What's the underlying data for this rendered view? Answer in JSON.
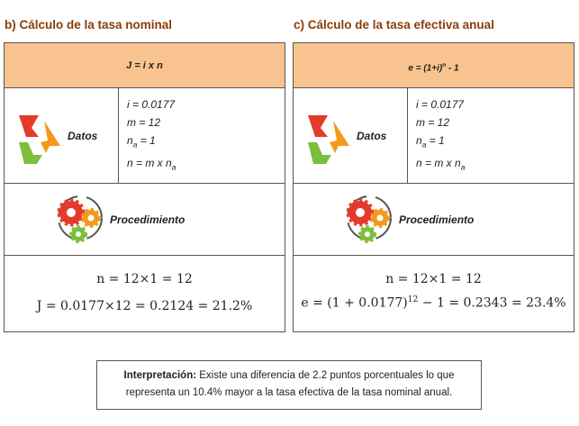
{
  "panels": [
    {
      "title": "b) Cálculo de la tasa nominal",
      "formula": [
        "J = i x n"
      ],
      "datos_label": "Datos",
      "datos": [
        [
          "i = 0.0177"
        ],
        [
          "m = 12"
        ],
        [
          "n",
          "a",
          " = 1"
        ],
        [
          "n = m x n",
          "a"
        ]
      ],
      "procedimiento_label": "Procedimiento",
      "results": [
        [
          "n = 12×1 = 12"
        ],
        [
          "J = 0.0177×12 = 0.2124 = 21.2%"
        ]
      ]
    },
    {
      "title": "c) Cálculo de la tasa efectiva anual",
      "formula": [
        "e = (1+i)",
        "n",
        " - 1"
      ],
      "datos_label": "Datos",
      "datos": [
        [
          "i = 0.0177"
        ],
        [
          "m = 12"
        ],
        [
          "n",
          "a",
          " = 1"
        ],
        [
          "n = m x n",
          "a"
        ]
      ],
      "procedimiento_label": "Procedimiento",
      "results": [
        [
          "n = 12×1 = 12"
        ],
        [
          "e = (1 + 0.0177)",
          "12",
          " − 1 = 0.2343 = 23.4%"
        ]
      ]
    }
  ],
  "interpretation": {
    "label": "Interpretación:",
    "text": " Existe una diferencia de 2.2 puntos porcentuales lo que representa un 10.4% mayor a la tasa efectiva de la tasa nominal anual."
  }
}
